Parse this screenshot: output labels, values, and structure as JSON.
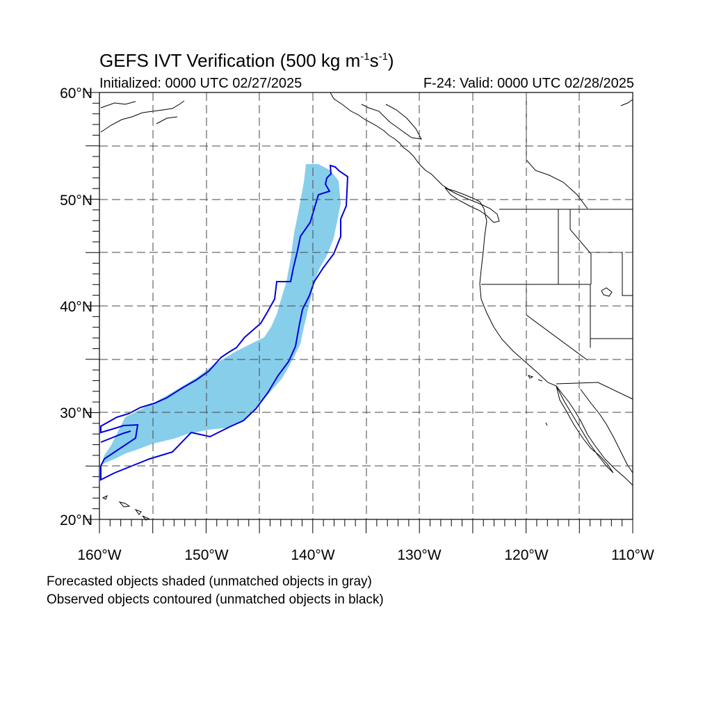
{
  "header": {
    "title_main": "GEFS IVT Verification (500 kg m",
    "title_exp1": "-1",
    "title_mid": "s",
    "title_exp2": "-1",
    "title_end": ")",
    "initialized": "Initialized: 0000 UTC 02/27/2025",
    "valid": "F-24: Valid: 0000 UTC 02/28/2025"
  },
  "axes": {
    "lat_labels": [
      "20°N",
      "30°N",
      "40°N",
      "50°N",
      "60°N"
    ],
    "lon_labels": [
      "160°W",
      "150°W",
      "140°W",
      "130°W",
      "120°W",
      "110°W"
    ]
  },
  "map": {
    "region": "Northeast Pacific / Western North America",
    "lon_range": [
      -160,
      -110
    ],
    "lat_range": [
      20,
      60
    ],
    "gridlines": "dashed every 5 degrees",
    "forecast_fill_color": "#87ceeb",
    "observed_contour_color": "#0000dd"
  },
  "footer": {
    "note1": "Forecasted objects shaded (unmatched objects in gray)",
    "note2": "Observed objects contoured (unmatched objects in black)"
  }
}
